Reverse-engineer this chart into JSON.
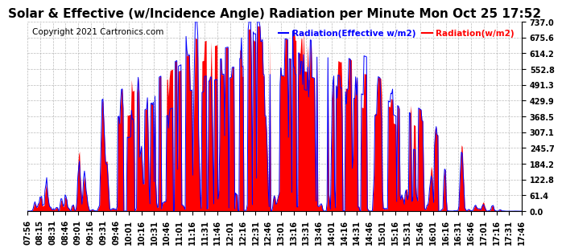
{
  "title": "Solar & Effective (w/Incidence Angle) Radiation per Minute Mon Oct 25 17:52",
  "copyright": "Copyright 2021 Cartronics.com",
  "legend_effective": "Radiation(Effective w/m2)",
  "legend_solar": "Radiation(w/m2)",
  "legend_effective_color": "blue",
  "legend_solar_color": "red",
  "ylabel_right_ticks": [
    0.0,
    61.4,
    122.8,
    184.2,
    245.7,
    307.1,
    368.5,
    429.9,
    491.3,
    552.8,
    614.2,
    675.6,
    737.0
  ],
  "ymax": 737.0,
  "ymin": 0.0,
  "background_color": "#ffffff",
  "plot_bg_color": "#ffffff",
  "grid_color": "#aaaaaa",
  "title_fontsize": 11,
  "copyright_fontsize": 7.5,
  "tick_labelsize": 7,
  "bar_color": "red",
  "line_color": "blue",
  "num_points": 590,
  "x_ticks_labels": [
    "07:56",
    "08:15",
    "08:31",
    "08:46",
    "09:01",
    "09:16",
    "09:31",
    "09:46",
    "10:01",
    "10:16",
    "10:31",
    "10:46",
    "11:01",
    "11:16",
    "11:31",
    "11:46",
    "12:01",
    "12:16",
    "12:31",
    "12:46",
    "13:01",
    "13:16",
    "13:31",
    "13:46",
    "14:01",
    "14:16",
    "14:31",
    "14:46",
    "15:01",
    "15:16",
    "15:31",
    "15:46",
    "16:01",
    "16:16",
    "16:31",
    "16:46",
    "17:01",
    "17:16",
    "17:31",
    "17:46"
  ]
}
